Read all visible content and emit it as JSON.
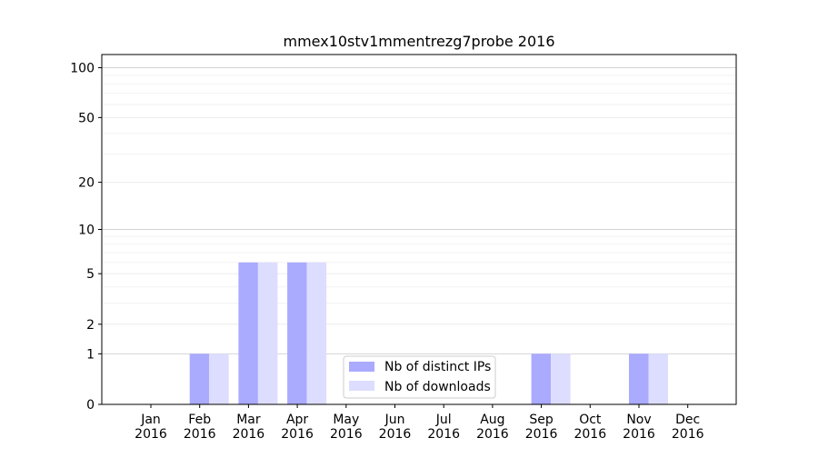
{
  "chart_data": {
    "type": "bar",
    "title": "mmex10stv1mmentrezg7probe 2016",
    "xlabel": "",
    "ylabel": "",
    "y_scale": "symlog",
    "ylim": [
      0,
      120
    ],
    "y_ticks": [
      0,
      1,
      2,
      5,
      10,
      20,
      50,
      100
    ],
    "y_tick_labels": [
      "0",
      "1",
      "2",
      "5",
      "10",
      "20",
      "50",
      "100"
    ],
    "categories": [
      "Jan 2016",
      "Feb 2016",
      "Mar 2016",
      "Apr 2016",
      "May 2016",
      "Jun 2016",
      "Jul 2016",
      "Aug 2016",
      "Sep 2016",
      "Oct 2016",
      "Nov 2016",
      "Dec 2016"
    ],
    "category_labels": [
      {
        "month": "Jan",
        "year": "2016"
      },
      {
        "month": "Feb",
        "year": "2016"
      },
      {
        "month": "Mar",
        "year": "2016"
      },
      {
        "month": "Apr",
        "year": "2016"
      },
      {
        "month": "May",
        "year": "2016"
      },
      {
        "month": "Jun",
        "year": "2016"
      },
      {
        "month": "Jul",
        "year": "2016"
      },
      {
        "month": "Aug",
        "year": "2016"
      },
      {
        "month": "Sep",
        "year": "2016"
      },
      {
        "month": "Oct",
        "year": "2016"
      },
      {
        "month": "Nov",
        "year": "2016"
      },
      {
        "month": "Dec",
        "year": "2016"
      }
    ],
    "series": [
      {
        "name": "Nb of distinct IPs",
        "color": "#aaaaff",
        "values": [
          0,
          1,
          6,
          6,
          0,
          0,
          0,
          0,
          1,
          0,
          1,
          0
        ]
      },
      {
        "name": "Nb of downloads",
        "color": "#ddddff",
        "values": [
          0,
          1,
          6,
          6,
          0,
          0,
          0,
          0,
          1,
          0,
          1,
          0
        ]
      }
    ],
    "grid": true,
    "legend_position": "bottom-center"
  }
}
